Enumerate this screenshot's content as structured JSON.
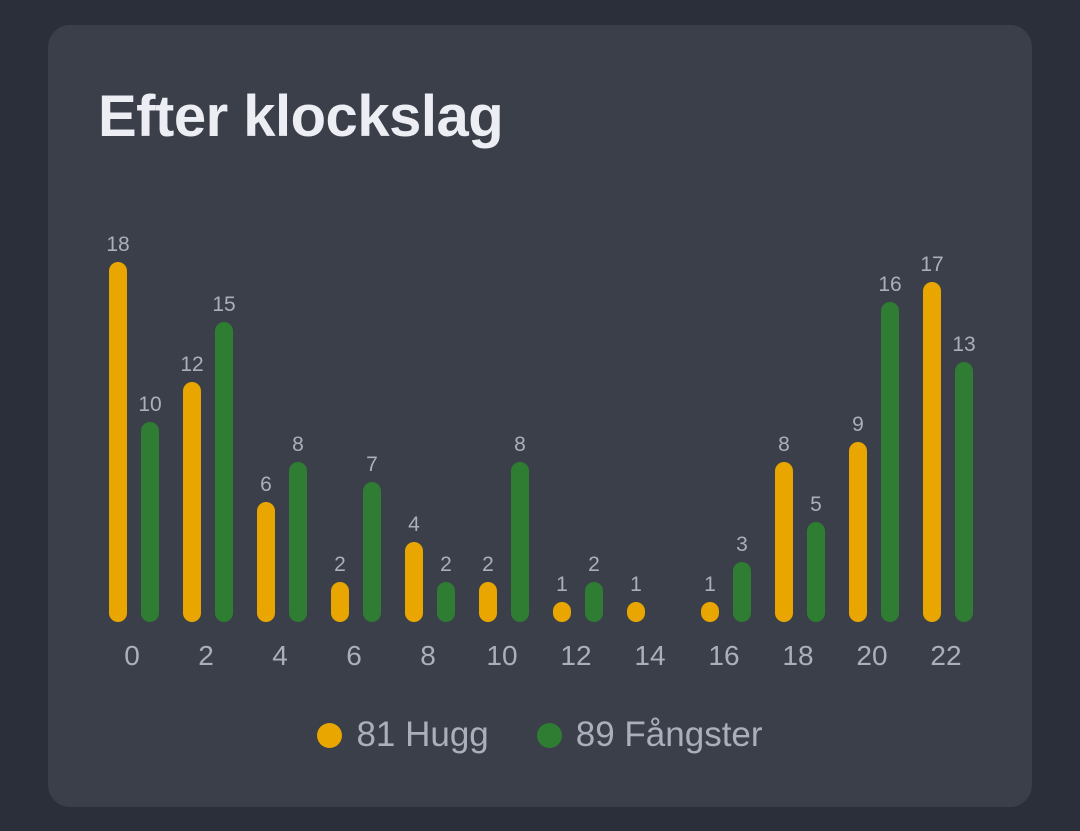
{
  "card": {
    "title": "Efter klockslag"
  },
  "colors": {
    "hugg": "#e9a600",
    "fangster": "#2e7d32"
  },
  "legend": [
    {
      "label": "81 Hugg"
    },
    {
      "label": "89 Fångster"
    }
  ],
  "chart_data": {
    "type": "bar",
    "title": "Efter klockslag",
    "xlabel": "",
    "ylabel": "",
    "grid": false,
    "legend_placement": "bottom-center",
    "categories": [
      "0",
      "2",
      "4",
      "6",
      "8",
      "10",
      "12",
      "14",
      "16",
      "18",
      "20",
      "22"
    ],
    "ylim": [
      0,
      18
    ],
    "series": [
      {
        "name": "81 Hugg",
        "color": "#e9a600",
        "values": [
          18,
          12,
          6,
          2,
          4,
          2,
          1,
          1,
          1,
          8,
          9,
          17
        ]
      },
      {
        "name": "89 Fångster",
        "color": "#2e7d32",
        "values": [
          10,
          15,
          8,
          7,
          2,
          8,
          2,
          0,
          3,
          5,
          16,
          13
        ]
      }
    ]
  }
}
